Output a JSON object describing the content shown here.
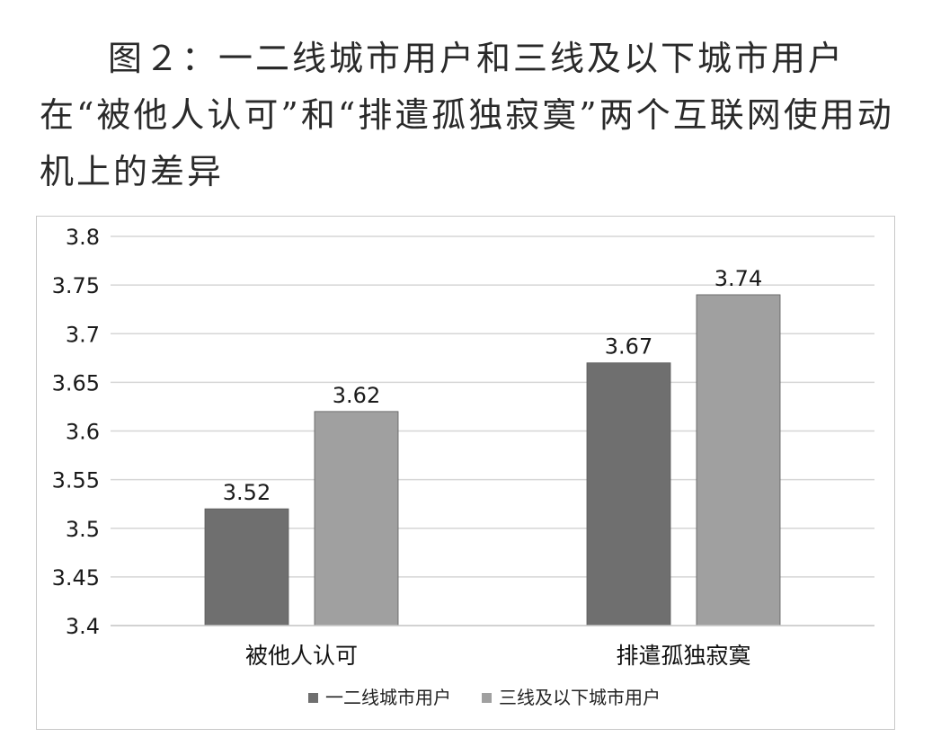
{
  "caption": "图２：一二线城市用户和三线及以下城市用户在“被他人认可”和“排遣孤独寂寞”两个互联网使用动机上的差异",
  "chart_data": {
    "type": "bar",
    "categories": [
      "被他人认可",
      "排遣孤独寂寞"
    ],
    "series": [
      {
        "name": "一二线城市用户",
        "values": [
          3.52,
          3.67
        ],
        "color": "#6f6f6f"
      },
      {
        "name": "三线及以下城市用户",
        "values": [
          3.62,
          3.74
        ],
        "color": "#a0a0a0"
      }
    ],
    "ylim": [
      3.4,
      3.8
    ],
    "yticks": [
      "3.4",
      "3.45",
      "3.5",
      "3.55",
      "3.6",
      "3.65",
      "3.7",
      "3.75",
      "3.8"
    ],
    "data_labels": true,
    "grid": true,
    "legend_position": "bottom",
    "title": "",
    "xlabel": "",
    "ylabel": ""
  }
}
